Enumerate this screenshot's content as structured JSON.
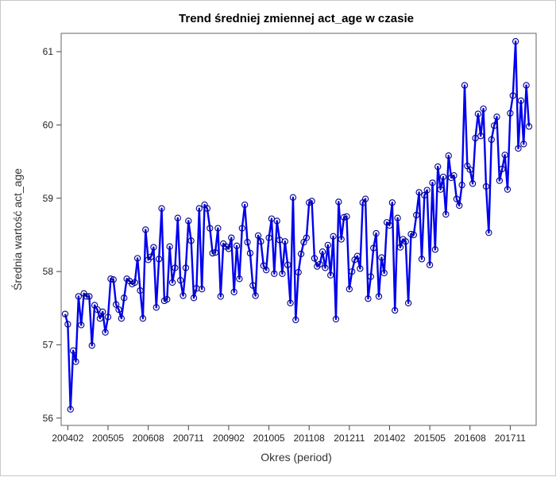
{
  "chart_data": {
    "type": "line",
    "title": "Trend średniej zmiennej act_age w czasie",
    "xlabel": "Okres (period)",
    "ylabel": "Średnia wartość act_age",
    "x_start": "200401",
    "x_ticks": [
      "200402",
      "200505",
      "200608",
      "200711",
      "200902",
      "201005",
      "201108",
      "201211",
      "201402",
      "201505",
      "201608",
      "201711"
    ],
    "y_ticks": [
      56,
      57,
      58,
      59,
      60,
      61
    ],
    "ylim": [
      55.9,
      61.25
    ],
    "grid": false,
    "legend": "none",
    "colors": {
      "series": "#0000ee",
      "marker": "#00008b"
    },
    "series": [
      {
        "values": [
          57.42,
          57.28,
          56.12,
          56.92,
          56.77,
          57.66,
          57.27,
          57.7,
          57.66,
          57.66,
          56.99,
          57.54,
          57.48,
          57.36,
          57.45,
          57.17,
          57.38,
          57.9,
          57.89,
          57.55,
          57.48,
          57.36,
          57.64,
          57.9,
          57.87,
          57.83,
          57.85,
          58.18,
          57.74,
          57.36,
          58.57,
          58.16,
          58.2,
          58.33,
          57.51,
          58.17,
          58.86,
          57.6,
          57.62,
          58.34,
          57.85,
          58.05,
          58.73,
          57.88,
          57.67,
          58.05,
          58.69,
          58.42,
          57.64,
          57.77,
          58.86,
          57.76,
          58.91,
          58.86,
          58.59,
          58.25,
          58.26,
          58.59,
          57.66,
          58.38,
          58.34,
          58.31,
          58.46,
          57.72,
          58.35,
          57.9,
          58.59,
          58.91,
          58.4,
          58.25,
          57.81,
          57.67,
          58.49,
          58.41,
          58.08,
          58.02,
          58.46,
          58.72,
          57.97,
          58.69,
          58.43,
          57.97,
          58.41,
          58.09,
          57.57,
          59.01,
          57.34,
          57.99,
          58.24,
          58.4,
          58.46,
          58.94,
          58.96,
          58.18,
          58.07,
          58.1,
          58.27,
          58.05,
          58.36,
          57.95,
          58.48,
          57.35,
          58.95,
          58.44,
          58.74,
          58.75,
          57.76,
          58.0,
          58.16,
          58.21,
          58.04,
          58.94,
          58.99,
          57.63,
          57.93,
          58.32,
          58.52,
          57.66,
          58.19,
          57.98,
          58.67,
          58.63,
          58.94,
          57.47,
          58.73,
          58.33,
          58.44,
          58.41,
          57.57,
          58.51,
          58.5,
          58.77,
          59.08,
          58.17,
          59.04,
          59.11,
          58.09,
          59.21,
          58.3,
          59.43,
          59.12,
          59.29,
          58.78,
          59.58,
          59.28,
          59.31,
          58.99,
          58.9,
          59.18,
          60.54,
          59.44,
          59.39,
          59.2,
          59.82,
          60.15,
          59.85,
          60.22,
          59.16,
          58.53,
          59.8,
          59.99,
          60.11,
          59.24,
          59.4,
          59.59,
          59.12,
          60.16,
          60.4,
          61.14,
          59.68,
          60.33,
          59.74,
          60.54,
          59.98
        ]
      }
    ]
  }
}
